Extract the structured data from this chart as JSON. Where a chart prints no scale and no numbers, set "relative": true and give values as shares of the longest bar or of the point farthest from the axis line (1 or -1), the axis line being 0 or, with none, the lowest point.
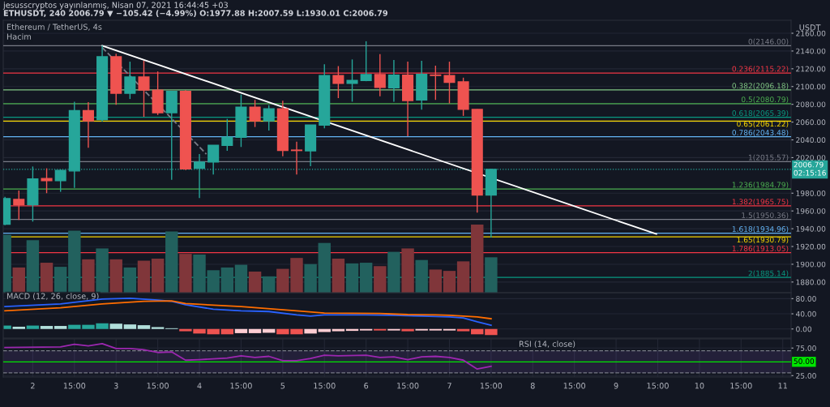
{
  "chart_data": [
    {
      "type": "candlestick",
      "title": "Ethereum / TetherUS, 4s",
      "ylabel": "USDT",
      "annotations": [
        "jesusscryptos yayınlanmış, Nisan 07, 2021 16:44:45 +03",
        "ETHUSDT, 240 2006.79 ▼ −105.42 (−4.99%) O:1977.88 H:2007.59 L:1930.01 C:2006.79"
      ],
      "x": [
        "2021-04-01T19:00",
        "2021-04-01T23:00",
        "2021-04-02T03:00",
        "2021-04-02T07:00",
        "2021-04-02T11:00",
        "2021-04-02T15:00",
        "2021-04-02T19:00",
        "2021-04-02T23:00",
        "2021-04-03T03:00",
        "2021-04-03T07:00",
        "2021-04-03T11:00",
        "2021-04-03T15:00",
        "2021-04-03T19:00",
        "2021-04-03T23:00",
        "2021-04-04T03:00",
        "2021-04-04T07:00",
        "2021-04-04T11:00",
        "2021-04-04T15:00",
        "2021-04-04T19:00",
        "2021-04-04T23:00",
        "2021-04-05T03:00",
        "2021-04-05T07:00",
        "2021-04-05T11:00",
        "2021-04-05T15:00",
        "2021-04-05T19:00",
        "2021-04-05T23:00",
        "2021-04-06T03:00",
        "2021-04-06T07:00",
        "2021-04-06T11:00",
        "2021-04-06T15:00",
        "2021-04-06T19:00",
        "2021-04-06T23:00",
        "2021-04-07T03:00",
        "2021-04-07T07:00",
        "2021-04-07T11:00",
        "2021-04-07T15:00"
      ],
      "ohlc": [
        [
          1945,
          1976,
          1944,
          1974
        ],
        [
          1973,
          1983,
          1950,
          1967
        ],
        [
          1967,
          2010,
          1948,
          1996
        ],
        [
          1996.5,
          2008,
          1980,
          1994
        ],
        [
          1994,
          2006.5,
          1981.5,
          2005.6
        ],
        [
          2005,
          2083,
          1986,
          2073
        ],
        [
          2073,
          2082.5,
          2031,
          2061.5
        ],
        [
          2062.7,
          2146,
          2060.6,
          2133.5
        ],
        [
          2133.5,
          2137,
          2079.5,
          2092.5
        ],
        [
          2092.5,
          2128,
          2086,
          2110.7
        ],
        [
          2110.7,
          2129,
          2066,
          2096
        ],
        [
          2096,
          2117,
          2068,
          2070.6
        ],
        [
          2070.6,
          2095,
          1995,
          2094.6
        ],
        [
          2094.6,
          2096,
          2006,
          2007.4
        ],
        [
          2008,
          2024,
          1974.6,
          2015
        ],
        [
          2015,
          2034,
          2001,
          2033.8
        ],
        [
          2033.8,
          2063.6,
          2027.7,
          2043
        ],
        [
          2043,
          2091,
          2032,
          2076.7
        ],
        [
          2076.7,
          2085,
          2054.5,
          2061.5
        ],
        [
          2061.5,
          2079,
          2050.5,
          2075
        ],
        [
          2075,
          2084,
          2021.6,
          2028
        ],
        [
          2028.5,
          2038,
          2001,
          2028
        ],
        [
          2027.7,
          2057,
          2010.4,
          2056.7
        ],
        [
          2056.7,
          2125,
          2053,
          2112.3
        ],
        [
          2112.3,
          2123,
          2087,
          2103.7
        ],
        [
          2103.7,
          2130.5,
          2083,
          2106.8
        ],
        [
          2106.8,
          2151,
          2106,
          2113.5
        ],
        [
          2113.5,
          2136.6,
          2089,
          2099
        ],
        [
          2098.6,
          2130,
          2083,
          2112.8
        ],
        [
          2112.8,
          2128,
          2044,
          2084.3
        ],
        [
          2084.9,
          2129,
          2074,
          2113.8
        ],
        [
          2113,
          2123.5,
          2085,
          2112.5
        ],
        [
          2112.3,
          2128,
          2081,
          2104.7
        ],
        [
          2105.3,
          2110,
          2067,
          2074.3
        ],
        [
          2074.3,
          2074.5,
          1958,
          1977.9
        ],
        [
          1977.88,
          2007.59,
          1930.01,
          2006.79
        ]
      ],
      "colors": [
        "#26a69a",
        "#ef5350",
        "#26a69a",
        "#ef5350",
        "#26a69a",
        "#26a69a",
        "#ef5350",
        "#26a69a",
        "#ef5350",
        "#26a69a",
        "#ef5350",
        "#ef5350",
        "#26a69a",
        "#ef5350",
        "#26a69a",
        "#26a69a",
        "#26a69a",
        "#26a69a",
        "#ef5350",
        "#26a69a",
        "#ef5350",
        "#ef5350",
        "#26a69a",
        "#26a69a",
        "#ef5350",
        "#26a69a",
        "#26a69a",
        "#ef5350",
        "#26a69a",
        "#ef5350",
        "#26a69a",
        "#ef5350",
        "#ef5350",
        "#ef5350",
        "#ef5350",
        "#26a69a"
      ],
      "series": [
        {
          "type": "line",
          "color": "#ffffff",
          "x": [
            "2021-04-02T23:00",
            "2021-04-09T14:36"
          ],
          "values": [
            2146,
            1934
          ]
        },
        {
          "type": "line",
          "color": "#787b86",
          "line_style": "dashed",
          "x": [
            "2021-04-02T23:00",
            "2021-04-04T05:00"
          ],
          "values": [
            2144,
            2024
          ]
        }
      ],
      "ref_lines": [
        {
          "axis": "y",
          "value": 2146,
          "label": "0(2146.00)",
          "color": "#787b86"
        },
        {
          "axis": "y",
          "value": 2115.22,
          "label": "0.236(2115.22)",
          "color": "#f23645"
        },
        {
          "axis": "y",
          "value": 2096.18,
          "label": "0.382(2096.18)",
          "color": "#81c784"
        },
        {
          "axis": "y",
          "value": 2080.79,
          "label": "0.5(2080.79)",
          "color": "#4caf50"
        },
        {
          "axis": "y",
          "value": 2065.39,
          "label": "0.618(2065.39)",
          "color": "#089981"
        },
        {
          "axis": "y",
          "value": 2061.22,
          "label": "0.65(2061.22)",
          "color": "#f7d600"
        },
        {
          "axis": "y",
          "value": 2043.48,
          "label": "0.786(2043.48)",
          "color": "#64b5f6"
        },
        {
          "axis": "y",
          "value": 2015.57,
          "label": "1(2015.57)",
          "color": "#787b86"
        },
        {
          "axis": "y",
          "value": 1984.79,
          "label": "1.236(1984.79)",
          "color": "#4caf50"
        },
        {
          "axis": "y",
          "value": 1965.75,
          "label": "1.382(1965.75)",
          "color": "#f23645"
        },
        {
          "axis": "y",
          "value": 1950.36,
          "label": "1.5(1950.36)",
          "color": "#787b86"
        },
        {
          "axis": "y",
          "value": 1934.96,
          "label": "1.618(1934.96)",
          "color": "#64b5f6"
        },
        {
          "axis": "y",
          "value": 1930.79,
          "label": "1.65(1930.79)",
          "color": "#f7d600"
        },
        {
          "axis": "y",
          "value": 1913.05,
          "label": "1.786(1913.05)",
          "color": "#f23645"
        },
        {
          "axis": "y",
          "value": 1885.14,
          "label": "2(1885.14)",
          "color": "#089981"
        },
        {
          "axis": "y",
          "value": 2006.79,
          "label": "2006.79\n02:15:16",
          "color": "#26a69a",
          "line_style": "dotted"
        }
      ],
      "xlim": [
        "2021-04-01T18:30",
        "2021-04-11T05:24"
      ],
      "ylim": [
        1868,
        2174.6
      ],
      "yticks": [
        {
          "value": 1880,
          "label": "1880.00"
        },
        {
          "value": 1900,
          "label": "1900.00"
        },
        {
          "value": 1920,
          "label": "1920.00"
        },
        {
          "value": 1940,
          "label": "1940.00"
        },
        {
          "value": 1960,
          "label": "1960.00"
        },
        {
          "value": 1980,
          "label": "1980.00"
        },
        {
          "value": 2020,
          "label": "2020.00"
        },
        {
          "value": 2040,
          "label": "2040.00"
        },
        {
          "value": 2060,
          "label": "2060.00"
        },
        {
          "value": 2080,
          "label": "2080.00"
        },
        {
          "value": 2100,
          "label": "2100.00"
        },
        {
          "value": 2120,
          "label": "2120.00"
        },
        {
          "value": 2140,
          "label": "2140.00"
        },
        {
          "value": 2160,
          "label": "2160.00"
        }
      ],
      "grid": "y",
      "tick_labels": "y"
    },
    {
      "type": "bar",
      "title": "Hacim",
      "relative": true,
      "tick_labels": false,
      "x": [
        "2021-04-01T19:00",
        "2021-04-01T23:00",
        "2021-04-02T03:00",
        "2021-04-02T07:00",
        "2021-04-02T11:00",
        "2021-04-02T15:00",
        "2021-04-02T19:00",
        "2021-04-02T23:00",
        "2021-04-03T03:00",
        "2021-04-03T07:00",
        "2021-04-03T11:00",
        "2021-04-03T15:00",
        "2021-04-03T19:00",
        "2021-04-03T23:00",
        "2021-04-04T03:00",
        "2021-04-04T07:00",
        "2021-04-04T11:00",
        "2021-04-04T15:00",
        "2021-04-04T19:00",
        "2021-04-04T23:00",
        "2021-04-05T03:00",
        "2021-04-05T07:00",
        "2021-04-05T11:00",
        "2021-04-05T15:00",
        "2021-04-05T19:00",
        "2021-04-05T23:00",
        "2021-04-06T03:00",
        "2021-04-06T07:00",
        "2021-04-06T11:00",
        "2021-04-06T15:00",
        "2021-04-06T19:00",
        "2021-04-06T23:00",
        "2021-04-07T03:00",
        "2021-04-07T07:00",
        "2021-04-07T11:00",
        "2021-04-07T15:00"
      ],
      "values": [
        0.85,
        0.37,
        0.77,
        0.44,
        0.38,
        0.91,
        0.49,
        0.65,
        0.49,
        0.37,
        0.47,
        0.5,
        0.9,
        0.57,
        0.56,
        0.33,
        0.37,
        0.41,
        0.31,
        0.24,
        0.35,
        0.51,
        0.42,
        0.73,
        0.5,
        0.43,
        0.44,
        0.39,
        0.6,
        0.65,
        0.48,
        0.34,
        0.32,
        0.46,
        1,
        0.52
      ],
      "colors": [
        "#22615e",
        "#80363a",
        "#22615e",
        "#80363a",
        "#22615e",
        "#22615e",
        "#80363a",
        "#22615e",
        "#80363a",
        "#22615e",
        "#80363a",
        "#80363a",
        "#22615e",
        "#80363a",
        "#22615e",
        "#22615e",
        "#22615e",
        "#22615e",
        "#80363a",
        "#22615e",
        "#80363a",
        "#80363a",
        "#22615e",
        "#22615e",
        "#80363a",
        "#22615e",
        "#22615e",
        "#80363a",
        "#22615e",
        "#80363a",
        "#22615e",
        "#80363a",
        "#80363a",
        "#80363a",
        "#80363a",
        "#22615e"
      ],
      "xlim": [
        "2021-04-01T18:30",
        "2021-04-11T05:24"
      ]
    },
    {
      "type": "line",
      "title": "MACD (12, 26, close, 9)",
      "tick_labels": "y",
      "grid": "y",
      "series": [
        {
          "type": "bar",
          "x": [
            "2021-04-01T19:00",
            "2021-04-01T23:00",
            "2021-04-02T03:00",
            "2021-04-02T07:00",
            "2021-04-02T11:00",
            "2021-04-02T15:00",
            "2021-04-02T19:00",
            "2021-04-02T23:00",
            "2021-04-03T03:00",
            "2021-04-03T07:00",
            "2021-04-03T11:00",
            "2021-04-03T15:00",
            "2021-04-03T19:00",
            "2021-04-03T23:00",
            "2021-04-04T03:00",
            "2021-04-04T07:00",
            "2021-04-04T11:00",
            "2021-04-04T15:00",
            "2021-04-04T19:00",
            "2021-04-04T23:00",
            "2021-04-05T03:00",
            "2021-04-05T07:00",
            "2021-04-05T11:00",
            "2021-04-05T15:00",
            "2021-04-05T19:00",
            "2021-04-05T23:00",
            "2021-04-06T03:00",
            "2021-04-06T07:00",
            "2021-04-06T11:00",
            "2021-04-06T15:00",
            "2021-04-06T19:00",
            "2021-04-06T23:00",
            "2021-04-07T03:00",
            "2021-04-07T07:00",
            "2021-04-07T11:00",
            "2021-04-07T15:00"
          ],
          "values": [
            9,
            6,
            9,
            8,
            8,
            11,
            11,
            15,
            14,
            12,
            10,
            5,
            2,
            -6,
            -12,
            -14,
            -14,
            -11,
            -11,
            -10,
            -14,
            -14,
            -12,
            -8,
            -6,
            -5,
            -4,
            -4,
            -4,
            -6,
            -4,
            -4,
            -4,
            -6,
            -14,
            -16
          ],
          "colors": [
            "#26a69a",
            "#b2dfdb",
            "#26a69a",
            "#b2dfdb",
            "#b2dfdb",
            "#26a69a",
            "#26a69a",
            "#26a69a",
            "#b2dfdb",
            "#b2dfdb",
            "#b2dfdb",
            "#b2dfdb",
            "#b2dfdb",
            "#ef5350",
            "#ef5350",
            "#ef5350",
            "#ef5350",
            "#ffcdd2",
            "#ffcdd2",
            "#ffcdd2",
            "#ef5350",
            "#ef5350",
            "#ffcdd2",
            "#ffcdd2",
            "#ffcdd2",
            "#ffcdd2",
            "#ffcdd2",
            "#ef5350",
            "#ffcdd2",
            "#ef5350",
            "#ffcdd2",
            "#ffcdd2",
            "#ffcdd2",
            "#ef5350",
            "#ef5350",
            "#ef5350"
          ]
        },
        {
          "type": "line",
          "color": "#2962ff",
          "x": [
            "2021-04-01T19:00",
            "2021-04-02T11:00",
            "2021-04-02T23:00",
            "2021-04-03T07:00",
            "2021-04-03T15:00",
            "2021-04-03T19:00",
            "2021-04-03T23:00",
            "2021-04-04T07:00",
            "2021-04-04T15:00",
            "2021-04-04T23:00",
            "2021-04-05T07:00",
            "2021-04-05T11:00",
            "2021-04-05T15:00",
            "2021-04-06T03:00",
            "2021-04-06T11:00",
            "2021-04-06T19:00",
            "2021-04-07T03:00",
            "2021-04-07T07:00",
            "2021-04-07T11:00",
            "2021-04-07T15:00"
          ],
          "values": [
            59,
            66,
            79,
            81,
            76,
            73,
            64,
            52,
            48,
            46,
            37,
            34,
            37,
            37,
            36,
            34,
            32,
            29,
            19,
            10
          ]
        },
        {
          "type": "line",
          "color": "#ff6d00",
          "x": [
            "2021-04-01T19:00",
            "2021-04-02T11:00",
            "2021-04-02T23:00",
            "2021-04-03T11:00",
            "2021-04-03T19:00",
            "2021-04-03T23:00",
            "2021-04-04T15:00",
            "2021-04-05T07:00",
            "2021-04-05T15:00",
            "2021-04-06T07:00",
            "2021-04-06T15:00",
            "2021-04-06T23:00",
            "2021-04-07T03:00",
            "2021-04-07T11:00",
            "2021-04-07T15:00"
          ],
          "values": [
            48,
            56,
            66,
            73,
            74,
            67,
            59,
            48,
            42,
            41,
            38,
            37,
            36,
            32,
            27
          ]
        }
      ],
      "xlim": [
        "2021-04-01T18:30",
        "2021-04-11T05:24"
      ],
      "ylim": [
        -24,
        95.7
      ],
      "yticks": [
        {
          "value": 0,
          "label": "0.00"
        },
        {
          "value": 40,
          "label": "40.00"
        },
        {
          "value": 80,
          "label": "80.00"
        }
      ]
    },
    {
      "type": "line",
      "title": "RSI (14, close)",
      "grid": true,
      "series": [
        {
          "type": "line",
          "color": "#9c27b0",
          "x": [
            "2021-04-01T19:00",
            "2021-04-02T11:00",
            "2021-04-02T15:00",
            "2021-04-02T19:00",
            "2021-04-02T23:00",
            "2021-04-03T03:00",
            "2021-04-03T07:00",
            "2021-04-03T11:00",
            "2021-04-03T15:00",
            "2021-04-03T19:00",
            "2021-04-03T23:00",
            "2021-04-04T03:00",
            "2021-04-04T11:00",
            "2021-04-04T15:00",
            "2021-04-04T19:00",
            "2021-04-04T23:00",
            "2021-04-05T03:00",
            "2021-04-05T07:00",
            "2021-04-05T11:00",
            "2021-04-05T15:00",
            "2021-04-05T19:00",
            "2021-04-06T03:00",
            "2021-04-06T07:00",
            "2021-04-06T11:00",
            "2021-04-06T15:00",
            "2021-04-06T19:00",
            "2021-04-06T23:00",
            "2021-04-07T03:00",
            "2021-04-07T07:00",
            "2021-04-07T11:00",
            "2021-04-07T15:00"
          ],
          "values": [
            76,
            77,
            82,
            79,
            83,
            74,
            74,
            72,
            67,
            68,
            53,
            54,
            57,
            61,
            58,
            60,
            52,
            52,
            56,
            62,
            61,
            62,
            58,
            59,
            54,
            59,
            60,
            58,
            53,
            37,
            42
          ]
        }
      ],
      "bands": [
        {
          "axis": "y",
          "from": 30,
          "to": 70,
          "color": "#7e57c2"
        }
      ],
      "ref_lines": [
        {
          "axis": "y",
          "value": 50,
          "label": "50.00",
          "color": "#00e600",
          "line_style": "solid"
        },
        {
          "axis": "y",
          "value": 70,
          "color": "#787b86",
          "line_style": "dashed"
        },
        {
          "axis": "y",
          "value": 30,
          "color": "#787b86",
          "line_style": "dashed"
        }
      ],
      "xlim": [
        "2021-04-01T18:30",
        "2021-04-11T05:24"
      ],
      "ylim": [
        22.5,
        91.6
      ],
      "xticks": [
        {
          "value": "2021-04-02T03:00",
          "label": "2"
        },
        {
          "value": "2021-04-02T15:00",
          "label": "15:00"
        },
        {
          "value": "2021-04-03T03:00",
          "label": "3"
        },
        {
          "value": "2021-04-03T15:00",
          "label": "15:00"
        },
        {
          "value": "2021-04-04T03:00",
          "label": "4"
        },
        {
          "value": "2021-04-04T15:00",
          "label": "15:00"
        },
        {
          "value": "2021-04-05T03:00",
          "label": "5"
        },
        {
          "value": "2021-04-05T15:00",
          "label": "15:00"
        },
        {
          "value": "2021-04-06T03:00",
          "label": "6"
        },
        {
          "value": "2021-04-06T15:00",
          "label": "15:00"
        },
        {
          "value": "2021-04-07T03:00",
          "label": "7"
        },
        {
          "value": "2021-04-07T15:00",
          "label": "15:00"
        },
        {
          "value": "2021-04-08T03:00",
          "label": "8"
        },
        {
          "value": "2021-04-08T15:00",
          "label": "15:00"
        },
        {
          "value": "2021-04-09T03:00",
          "label": "9"
        },
        {
          "value": "2021-04-09T15:00",
          "label": "15:00"
        },
        {
          "value": "2021-04-10T03:00",
          "label": "10"
        },
        {
          "value": "2021-04-10T15:00",
          "label": "15:00"
        },
        {
          "value": "2021-04-11T03:00",
          "label": "11"
        }
      ],
      "yticks": [
        {
          "value": 25,
          "label": "25.00"
        },
        {
          "value": 75,
          "label": "75.00"
        }
      ]
    }
  ]
}
